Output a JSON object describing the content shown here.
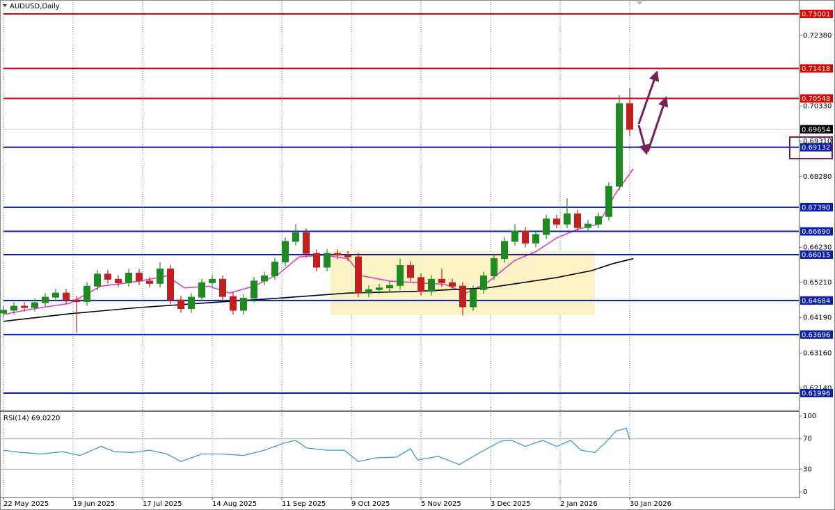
{
  "chart_data": [
    {
      "type": "candlestick",
      "title": "AUDUSD,Daily",
      "x": [
        0,
        3,
        6,
        9,
        12,
        15,
        18,
        21,
        24,
        27,
        30,
        33,
        36,
        39,
        42,
        45,
        48,
        51,
        54,
        57,
        60,
        63,
        66,
        69,
        72,
        75,
        78,
        81,
        84,
        87,
        90,
        93,
        96,
        99,
        102,
        105,
        108,
        111,
        114,
        117,
        120,
        123,
        126,
        129,
        132,
        135,
        138,
        141,
        144,
        147,
        150,
        153,
        156,
        159,
        162,
        165,
        168,
        171,
        174,
        177,
        180
      ],
      "open": [
        0.6432,
        0.644,
        0.6452,
        0.6448,
        0.6462,
        0.6478,
        0.649,
        0.647,
        0.6465,
        0.651,
        0.6545,
        0.653,
        0.652,
        0.6548,
        0.6525,
        0.6518,
        0.656,
        0.647,
        0.6445,
        0.6478,
        0.652,
        0.653,
        0.648,
        0.644,
        0.6475,
        0.6525,
        0.654,
        0.658,
        0.664,
        0.6665,
        0.6605,
        0.6565,
        0.6605,
        0.66,
        0.6595,
        0.649,
        0.65,
        0.6505,
        0.6512,
        0.657,
        0.6535,
        0.6495,
        0.653,
        0.652,
        0.651,
        0.645,
        0.65,
        0.654,
        0.659,
        0.664,
        0.667,
        0.6635,
        0.666,
        0.6705,
        0.669,
        0.672,
        0.668,
        0.669,
        0.6712,
        0.68,
        0.704
      ],
      "high": [
        0.6452,
        0.6464,
        0.6464,
        0.6474,
        0.649,
        0.6502,
        0.6502,
        0.6482,
        0.6522,
        0.6557,
        0.6557,
        0.6542,
        0.656,
        0.656,
        0.6537,
        0.658,
        0.6572,
        0.6482,
        0.649,
        0.6532,
        0.6542,
        0.6542,
        0.6492,
        0.6487,
        0.6537,
        0.6552,
        0.6592,
        0.6652,
        0.669,
        0.6677,
        0.6617,
        0.6617,
        0.6617,
        0.6612,
        0.6607,
        0.6512,
        0.6517,
        0.6524,
        0.659,
        0.6582,
        0.6547,
        0.6542,
        0.656,
        0.6532,
        0.6522,
        0.6512,
        0.6552,
        0.6602,
        0.6652,
        0.669,
        0.6682,
        0.6672,
        0.6717,
        0.6717,
        0.6765,
        0.6732,
        0.6702,
        0.6724,
        0.6812,
        0.7065,
        0.7085
      ],
      "low": [
        0.642,
        0.6428,
        0.6436,
        0.6436,
        0.645,
        0.6466,
        0.6458,
        0.6375,
        0.6453,
        0.6498,
        0.6518,
        0.6508,
        0.6508,
        0.6513,
        0.6506,
        0.6506,
        0.6458,
        0.6433,
        0.6433,
        0.6466,
        0.6508,
        0.6468,
        0.6428,
        0.6428,
        0.6463,
        0.6513,
        0.6528,
        0.6568,
        0.6628,
        0.6593,
        0.6553,
        0.6553,
        0.6588,
        0.6583,
        0.6478,
        0.6478,
        0.6488,
        0.6493,
        0.65,
        0.6523,
        0.6483,
        0.6483,
        0.6508,
        0.6498,
        0.6425,
        0.6438,
        0.6488,
        0.6528,
        0.6578,
        0.6628,
        0.6623,
        0.6623,
        0.6648,
        0.6678,
        0.6678,
        0.6668,
        0.6668,
        0.6678,
        0.67,
        0.6788,
        0.6945
      ],
      "close": [
        0.644,
        0.6452,
        0.6448,
        0.6462,
        0.6478,
        0.649,
        0.647,
        0.6465,
        0.651,
        0.6545,
        0.653,
        0.652,
        0.6548,
        0.6525,
        0.6518,
        0.656,
        0.647,
        0.6445,
        0.6478,
        0.652,
        0.653,
        0.648,
        0.644,
        0.6475,
        0.6525,
        0.654,
        0.658,
        0.664,
        0.6665,
        0.6605,
        0.6565,
        0.6605,
        0.66,
        0.6595,
        0.649,
        0.65,
        0.6505,
        0.6512,
        0.657,
        0.6535,
        0.6495,
        0.653,
        0.652,
        0.651,
        0.645,
        0.65,
        0.654,
        0.659,
        0.664,
        0.667,
        0.6635,
        0.666,
        0.6705,
        0.669,
        0.672,
        0.668,
        0.669,
        0.6712,
        0.68,
        0.704,
        0.6965
      ],
      "up_color": "#1f8a1f",
      "down_color": "#c21f1f",
      "lines": [
        {
          "color": "#e040c0",
          "x": [
            0,
            9,
            19,
            28,
            36,
            42,
            47,
            52,
            59,
            65,
            72,
            79,
            85,
            92,
            99,
            103,
            111,
            119,
            127,
            133,
            139,
            147,
            153,
            159,
            165,
            171,
            176,
            181
          ],
          "values": [
            0.6428,
            0.6445,
            0.646,
            0.651,
            0.652,
            0.653,
            0.654,
            0.6505,
            0.651,
            0.649,
            0.651,
            0.6545,
            0.6595,
            0.66,
            0.659,
            0.654,
            0.6525,
            0.652,
            0.6515,
            0.649,
            0.652,
            0.6585,
            0.661,
            0.665,
            0.6675,
            0.669,
            0.678,
            0.685
          ]
        },
        {
          "color": "#000000",
          "x": [
            0,
            19,
            39,
            59,
            79,
            99,
            119,
            139,
            159,
            169,
            175,
            181
          ],
          "values": [
            0.6408,
            0.643,
            0.6448,
            0.6462,
            0.6475,
            0.649,
            0.6495,
            0.6505,
            0.6535,
            0.6555,
            0.6575,
            0.659
          ]
        }
      ],
      "levels": [
        {
          "value": 0.73001,
          "label": "0.73001",
          "color": "#e00000"
        },
        {
          "value": 0.71418,
          "label": "0.71418",
          "color": "#e00000"
        },
        {
          "value": 0.70548,
          "label": "0.70548",
          "color": "#e00000"
        },
        {
          "value": 0.69654,
          "label": "0.69654",
          "color": "#000000"
        },
        {
          "value": 0.69132,
          "label": "0.69132",
          "color": "#0a1fa8"
        },
        {
          "value": 0.6739,
          "label": "0.67390",
          "color": "#0a1fa8"
        },
        {
          "value": 0.6669,
          "label": "0.66690",
          "color": "#0a1fa8"
        },
        {
          "value": 0.66015,
          "label": "0.66015",
          "color": "#0a1fa8"
        },
        {
          "value": 0.64684,
          "label": "0.64684",
          "color": "#0a1fa8"
        },
        {
          "value": 0.63696,
          "label": "0.63696",
          "color": "#0a1fa8"
        },
        {
          "value": 0.61996,
          "label": "0.61996",
          "color": "#0a1fa8"
        }
      ],
      "zone": {
        "x": [
          94,
          170
        ],
        "y": [
          0.6426,
          0.6612
        ],
        "color": "#fbf2c6"
      },
      "xlim": [
        -1,
        228.6
      ],
      "xticks": [
        {
          "value": 0,
          "label": "22 May 2025"
        },
        {
          "value": 20,
          "label": "19 Jun 2025"
        },
        {
          "value": 40,
          "label": "17 Jul 2025"
        },
        {
          "value": 60,
          "label": "14 Aug 2025"
        },
        {
          "value": 80,
          "label": "11 Sep 2025"
        },
        {
          "value": 100,
          "label": "9 Oct 2025"
        },
        {
          "value": 120,
          "label": "5 Nov 2025"
        },
        {
          "value": 140,
          "label": "3 Dec 2025"
        },
        {
          "value": 160,
          "label": "2 Jan 2026"
        },
        {
          "value": 180,
          "label": "30 Jan 2026"
        }
      ],
      "ylim": [
        0.61532,
        0.73405
      ],
      "yticks": [
        {
          "value": 0.7238,
          "label": "0.72380"
        },
        {
          "value": 0.7033,
          "label": "0.70330"
        },
        {
          "value": 0.6931,
          "label": "0.69310"
        },
        {
          "value": 0.6828,
          "label": "0.68280"
        },
        {
          "value": 0.6623,
          "label": "0.66230"
        },
        {
          "value": 0.6521,
          "label": "0.65210"
        },
        {
          "value": 0.6419,
          "label": "0.64190"
        },
        {
          "value": 0.6316,
          "label": "0.63160"
        },
        {
          "value": 0.6214,
          "label": "0.62140"
        }
      ],
      "grid": true
    },
    {
      "type": "line",
      "title": "RSI(14) 69.0220",
      "series": [
        {
          "color": "#3b9ad9",
          "x": [
            0,
            5,
            11,
            17,
            22,
            28,
            32,
            37,
            42,
            47,
            51,
            57,
            63,
            69,
            75,
            81,
            84,
            87,
            93,
            98,
            102,
            107,
            113,
            117,
            119,
            125,
            131,
            137,
            143,
            146,
            150,
            155,
            159,
            163,
            166,
            170,
            173,
            176,
            179,
            180
          ],
          "values": [
            55,
            52,
            50,
            53,
            48,
            60,
            53,
            52,
            55,
            50,
            40,
            50,
            50,
            48,
            55,
            65,
            68,
            58,
            55,
            55,
            40,
            45,
            46,
            57,
            42,
            47,
            36,
            52,
            67,
            68,
            60,
            68,
            60,
            68,
            55,
            52,
            65,
            80,
            84,
            69.022
          ]
        }
      ],
      "xlim": [
        -1,
        228.6
      ],
      "ylim": [
        -7.3,
        105.5
      ],
      "yticks": [
        100,
        70,
        30,
        0
      ],
      "levels": [
        70,
        30
      ]
    }
  ]
}
